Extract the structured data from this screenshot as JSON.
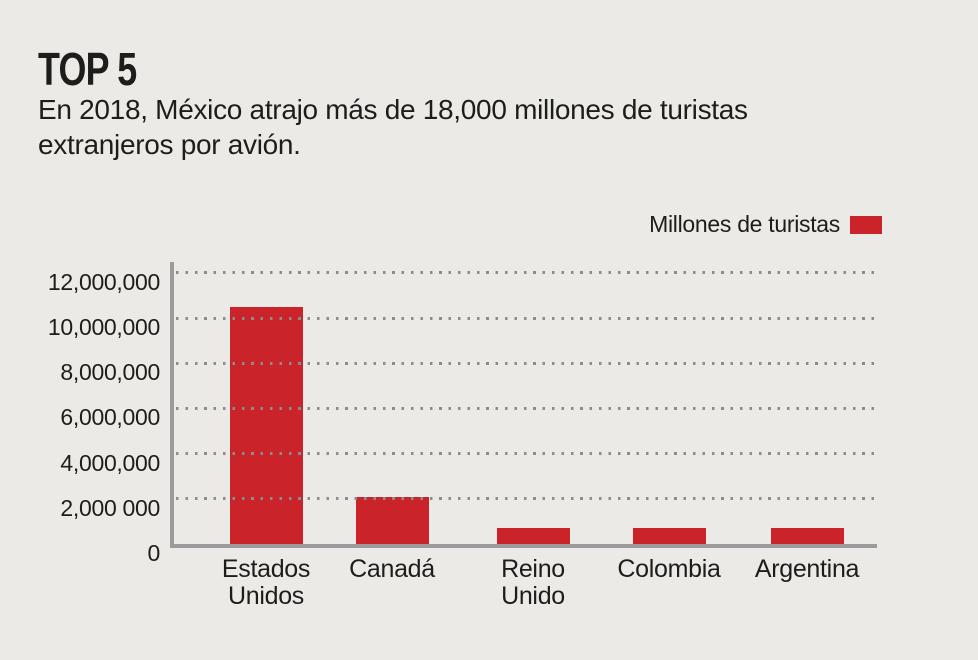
{
  "header": {
    "title": "TOP 5",
    "subtitle": "En 2018, México atrajo más de 18,000 millones de turistas extranjeros por avión."
  },
  "legend": {
    "label": "Millones de turistas",
    "swatch_color": "#CB232A"
  },
  "chart_data": {
    "type": "bar",
    "title": "TOP 5",
    "subtitle": "En 2018, México atrajo más de 18,000 millones de turistas extranjeros por avión.",
    "categories": [
      "Estados Unidos",
      "Canadá",
      "Reino Unido",
      "Colombia",
      "Argentina"
    ],
    "category_lines": [
      [
        "Estados",
        "Unidos"
      ],
      [
        "Canadá"
      ],
      [
        "Reino",
        "Unido"
      ],
      [
        "Colombia"
      ],
      [
        "Argentina"
      ]
    ],
    "values": [
      10500000,
      2100000,
      700000,
      700000,
      700000
    ],
    "xlabel": "",
    "ylabel": "",
    "ylim": [
      0,
      12000000
    ],
    "yticks": [
      {
        "value": 0,
        "label": "0"
      },
      {
        "value": 2000000,
        "label": "2,000 000"
      },
      {
        "value": 4000000,
        "label": "4,000,000"
      },
      {
        "value": 6000000,
        "label": "6,000,000"
      },
      {
        "value": 8000000,
        "label": "8,000,000"
      },
      {
        "value": 10000000,
        "label": "10,000,000"
      },
      {
        "value": 12000000,
        "label": "12,000,000"
      }
    ],
    "legend_entries": [
      {
        "label": "Millones de turistas",
        "color": "#CB232A"
      }
    ],
    "legend_position": "top-right",
    "grid": "horizontal-dotted",
    "bar_color": "#CB232A"
  },
  "colors": {
    "background": "#EBEAE7",
    "bar": "#CB232A",
    "axis": "#9B9B9B",
    "grid_dot": "#8C8C8C",
    "text": "#1D1D1B"
  }
}
